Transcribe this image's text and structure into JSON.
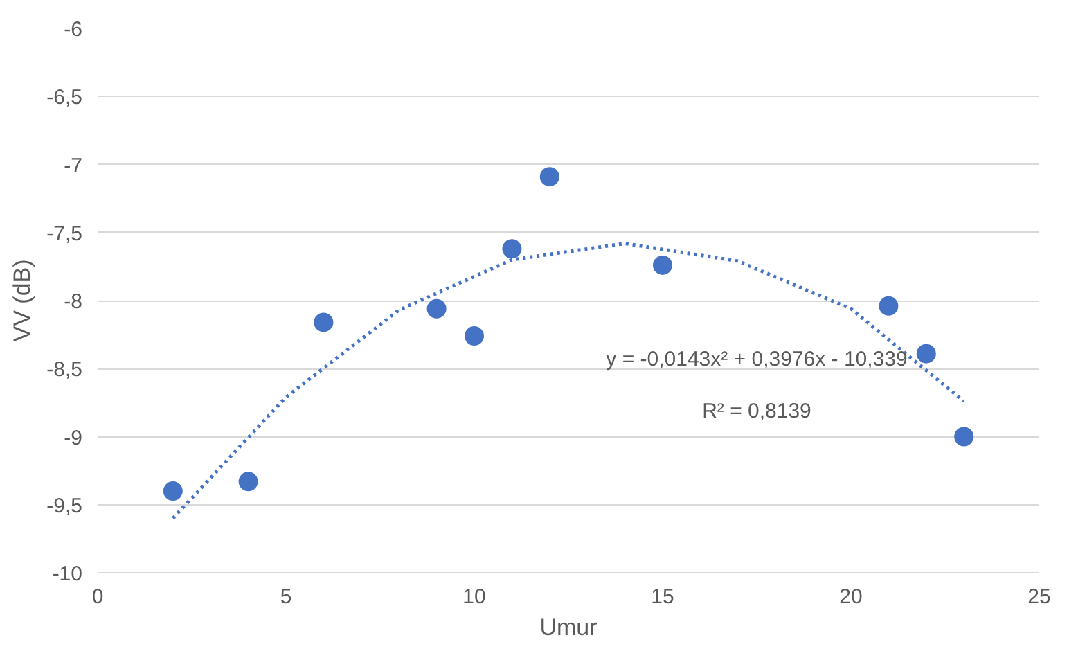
{
  "chart_data": {
    "type": "scatter",
    "xlabel": "Umur",
    "ylabel": "VV (dB)",
    "xlim": [
      0,
      25
    ],
    "xticks": [
      0,
      5,
      10,
      15,
      20,
      25
    ],
    "ylim": [
      -10,
      -6
    ],
    "yticks": [
      -10,
      {
        "value": -9.5,
        "label": "-9,5"
      },
      -9,
      {
        "value": -8.5,
        "label": "-8,5"
      },
      -8,
      {
        "value": -7.5,
        "label": "-7,5"
      },
      -7,
      {
        "value": -6.5,
        "label": "-6,5"
      },
      -6
    ],
    "grid": "y",
    "series": [
      {
        "color": "#4472c4",
        "marker": "circle",
        "x": [
          2,
          4,
          6,
          9,
          10,
          11,
          12,
          15,
          21,
          22,
          23
        ],
        "values": [
          -9.4,
          -9.33,
          -8.16,
          -8.06,
          -8.26,
          -7.62,
          -7.09,
          -7.74,
          -8.04,
          -8.39,
          -9.0
        ]
      },
      {
        "type": "line",
        "color": "#4472c4",
        "marker": "none",
        "line_style": "dotted",
        "x": [
          2,
          5,
          8,
          11,
          14,
          17,
          20,
          23
        ],
        "values": [
          -9.6,
          -8.71,
          -8.07,
          -7.7,
          -7.58,
          -7.71,
          -8.06,
          -8.74
        ]
      }
    ],
    "annotations": [
      "y = -0,0143x² + 0,3976x - 10,339",
      "R² = 0,8139"
    ]
  }
}
